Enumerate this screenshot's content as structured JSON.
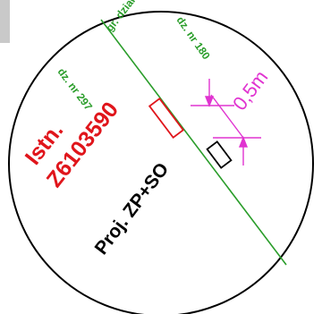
{
  "labels": {
    "boundary": "gr. działki",
    "parcel_left": "dz. nr 297",
    "parcel_right": "dz. nr 180",
    "existing_title": "Istn.",
    "existing_id": "Z6103590",
    "projected": "Proj. ZP+SO",
    "distance": "0,5m"
  },
  "colors": {
    "circle": "#000000",
    "boundary_line": "#2a9d2a",
    "existing": "#e0151b",
    "projected": "#000000",
    "dimension": "#e033d0",
    "background_scan": "#c9c9c9"
  }
}
